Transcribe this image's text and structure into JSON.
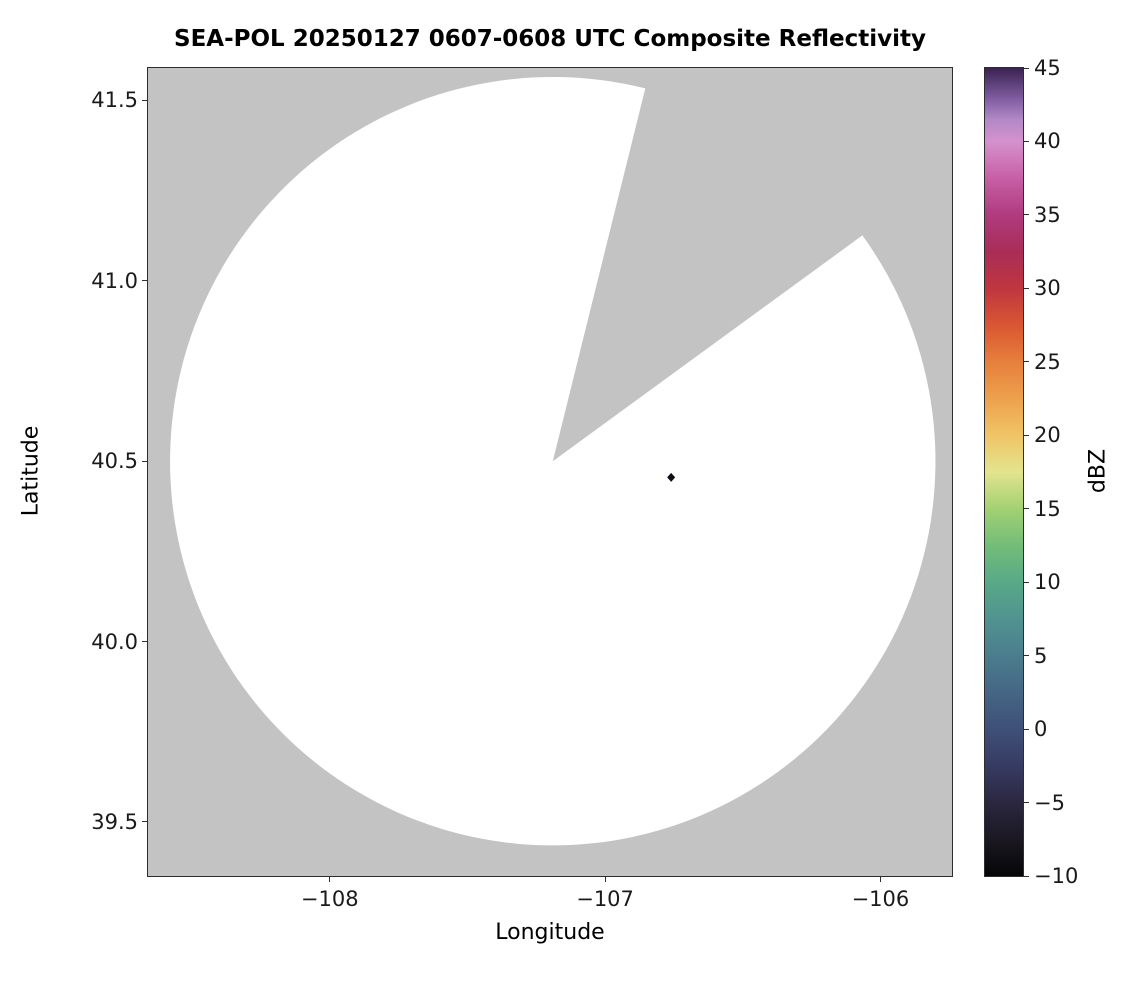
{
  "chart_data": {
    "type": "heatmap",
    "title": "SEA-POL 20250127 0607-0608 UTC Composite Reflectivity",
    "xlabel": "Longitude",
    "ylabel": "Latitude",
    "xlim": [
      -108.66,
      -105.74
    ],
    "ylim": [
      39.35,
      41.59
    ],
    "xticks": [
      -108,
      -107,
      -106
    ],
    "xtick_labels": [
      "−108",
      "−107",
      "−106"
    ],
    "yticks": [
      39.5,
      40.0,
      40.5,
      41.0,
      41.5
    ],
    "ytick_labels": [
      "39.5",
      "40.0",
      "40.5",
      "41.0",
      "41.5"
    ],
    "grid": false,
    "legend": "none",
    "plot_bg_color": "#c3c3c3",
    "coverage_color": "#ffffff",
    "radar": {
      "center_lon": -107.19,
      "center_lat": 40.5,
      "range_lon_deg": 1.39,
      "range_lat_deg": 1.065,
      "blocked_sector_azimuth_deg": [
        14,
        54
      ]
    },
    "echoes": [
      {
        "lon": -106.76,
        "lat": 40.455,
        "dbz": -9,
        "color": "#0e0e18"
      }
    ],
    "colorbar": {
      "label": "dBZ",
      "min": -10,
      "max": 45,
      "ticks": [
        -10,
        -5,
        0,
        5,
        10,
        15,
        20,
        25,
        30,
        35,
        40,
        45
      ],
      "tick_labels": [
        "−10",
        "−5",
        "0",
        "5",
        "10",
        "15",
        "20",
        "25",
        "30",
        "35",
        "40",
        "45"
      ],
      "stops": [
        {
          "value": -10,
          "color": "#060608"
        },
        {
          "value": -7.5,
          "color": "#1b1822"
        },
        {
          "value": -5,
          "color": "#2b2740"
        },
        {
          "value": -2.5,
          "color": "#373b62"
        },
        {
          "value": 0,
          "color": "#3f5078"
        },
        {
          "value": 2.5,
          "color": "#456684"
        },
        {
          "value": 5,
          "color": "#4b7d8e"
        },
        {
          "value": 7.5,
          "color": "#519390"
        },
        {
          "value": 10,
          "color": "#58a987"
        },
        {
          "value": 12.5,
          "color": "#73bd79"
        },
        {
          "value": 15,
          "color": "#a3d173"
        },
        {
          "value": 17.5,
          "color": "#e3e48e"
        },
        {
          "value": 20,
          "color": "#f0c466"
        },
        {
          "value": 22.5,
          "color": "#eda14d"
        },
        {
          "value": 25,
          "color": "#e67f3c"
        },
        {
          "value": 27.5,
          "color": "#d95632"
        },
        {
          "value": 30,
          "color": "#c03640"
        },
        {
          "value": 32.5,
          "color": "#a92d57"
        },
        {
          "value": 35,
          "color": "#b03b7e"
        },
        {
          "value": 37.5,
          "color": "#c75fa6"
        },
        {
          "value": 40,
          "color": "#d592cd"
        },
        {
          "value": 41.5,
          "color": "#b288c6"
        },
        {
          "value": 43,
          "color": "#7d5a9e"
        },
        {
          "value": 45,
          "color": "#3a2352"
        }
      ]
    }
  }
}
